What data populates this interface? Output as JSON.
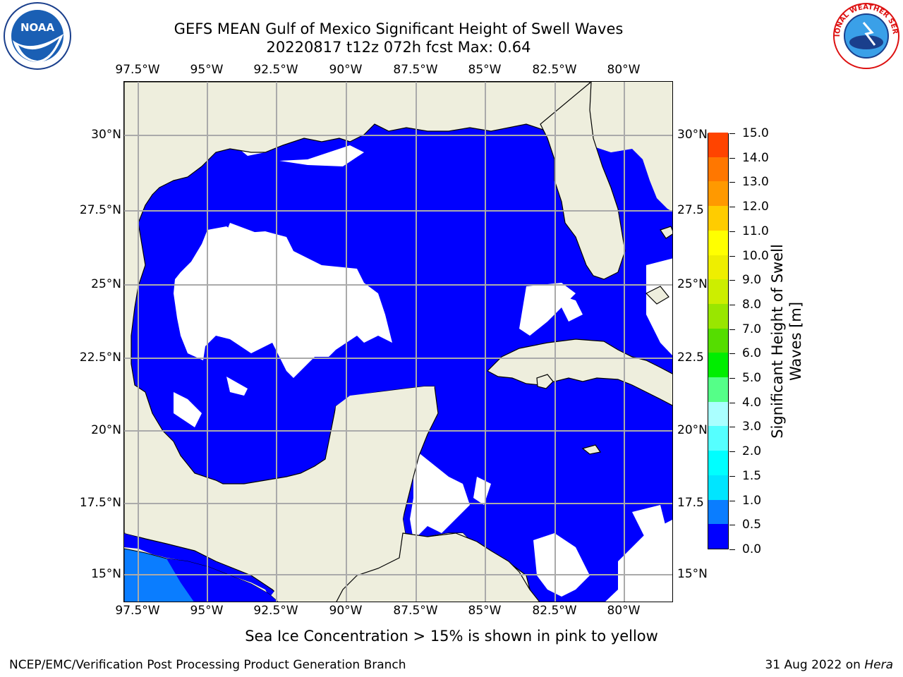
{
  "title_line1": "GEFS MEAN Gulf of Mexico Significant Height of Swell Waves",
  "title_line2": "20220817 t12z 072h fcst   Max: 0.64",
  "lon_labels": [
    "97.5°W",
    "95°W",
    "92.5°W",
    "90°W",
    "87.5°W",
    "85°W",
    "82.5°W",
    "80°W"
  ],
  "lat_labels_left": [
    "30°N",
    "27.5°N",
    "25°N",
    "22.5°N",
    "20°N",
    "17.5°N",
    "15°N"
  ],
  "lat_labels_right": [
    "30°N",
    "27.5",
    "25°N",
    "22.5",
    "20°N",
    "17.5",
    "15°N"
  ],
  "colorbar": {
    "title": "Significant Height of Swell Waves [m]",
    "title_line1": "Significant Height of Swell",
    "title_line2": "Waves [m]",
    "levels": [
      "0.0",
      "0.5",
      "1.0",
      "1.5",
      "2.0",
      "3.0",
      "4.0",
      "5.0",
      "6.0",
      "7.0",
      "8.0",
      "9.0",
      "10.0",
      "11.0",
      "12.0",
      "13.0",
      "14.0",
      "15.0"
    ],
    "colors": [
      "#0000ff",
      "#0a7dff",
      "#00e5ff",
      "#00ffff",
      "#55ffff",
      "#aaffff",
      "#55ff88",
      "#00ee00",
      "#55dd00",
      "#99e600",
      "#ccee00",
      "#eeee00",
      "#ffff00",
      "#ffcc00",
      "#ff9900",
      "#ff7700",
      "#ff4400",
      "#ff2200",
      "#ff0000"
    ]
  },
  "chart_data": {
    "type": "heatmap",
    "title": "GEFS MEAN Gulf of Mexico Significant Height of Swell Waves",
    "subtitle": "20220817 t12z 072h fcst   Max: 0.64",
    "lon_range": [
      -98.5,
      -78.5
    ],
    "lat_range": [
      14,
      32
    ],
    "max_value": 0.64,
    "units": "m",
    "colormap_levels": [
      0.0,
      0.5,
      1.0,
      1.5,
      2.0,
      3.0,
      4.0,
      5.0,
      6.0,
      7.0,
      8.0,
      9.0,
      10.0,
      11.0,
      12.0,
      13.0,
      14.0,
      15.0
    ],
    "grid": true
  },
  "note": "Sea Ice Concentration > 15% is shown in pink to yellow",
  "footer_left": "NCEP/EMC/Verification Post Processing Product Generation Branch",
  "footer_date": "31 Aug 2022 on",
  "footer_machine": "Hera",
  "logo_left_text": "NOAA",
  "logo_right_text": "NATIONAL WEATHER SERVICE",
  "land_color": "#eeeedd",
  "water_low_color": "#0000ff",
  "nodata_color": "#ffffff"
}
